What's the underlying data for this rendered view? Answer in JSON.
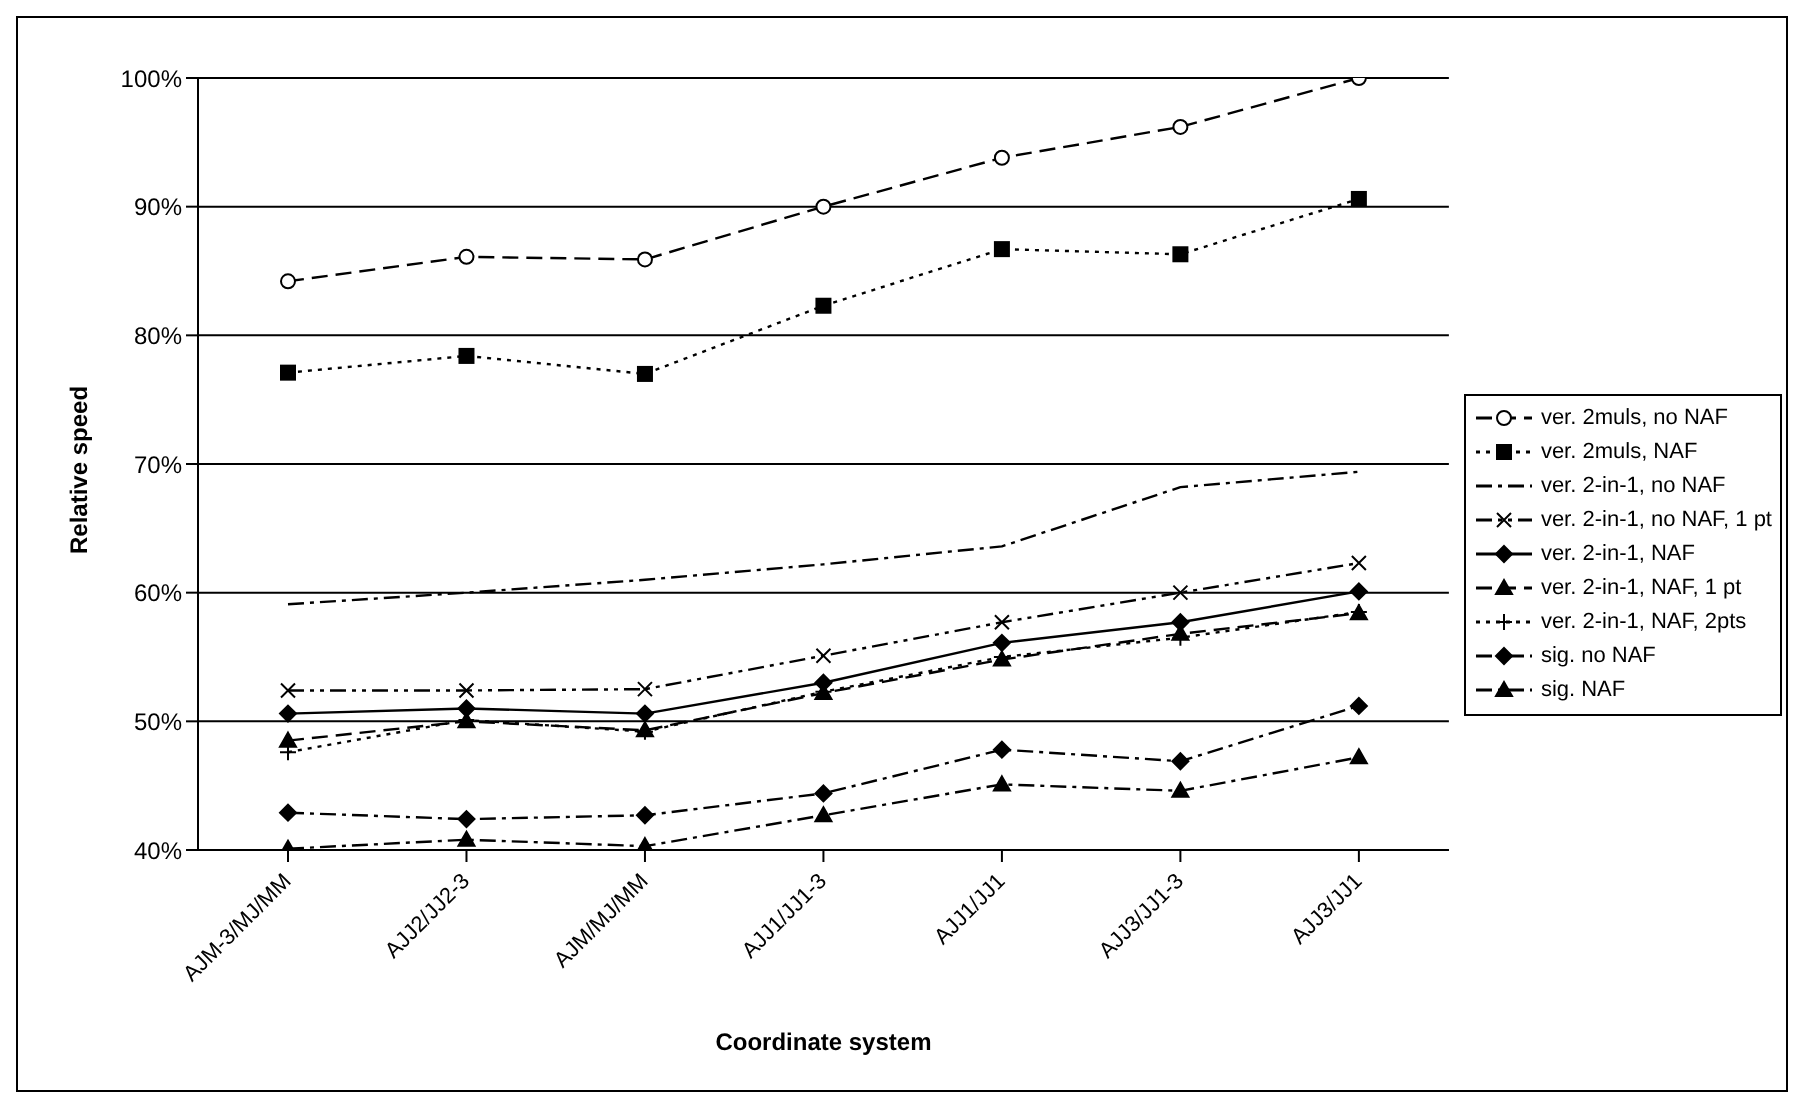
{
  "chart_data": {
    "type": "line",
    "xlabel": "Coordinate system",
    "ylabel": "Relative speed",
    "categories": [
      "AJM-3/MJ/MM",
      "AJJ2/JJ2-3",
      "AJM/MJ/MM",
      "AJJ1/JJ1-3",
      "AJJ1/JJ1",
      "AJJ3/JJ1-3",
      "AJJ3/JJ1"
    ],
    "ylim": [
      40,
      100
    ],
    "yticks": [
      {
        "value": 40,
        "label": "40%"
      },
      {
        "value": 50,
        "label": "50%"
      },
      {
        "value": 60,
        "label": "60%"
      },
      {
        "value": 70,
        "label": "70%"
      },
      {
        "value": 80,
        "label": "80%"
      },
      {
        "value": 90,
        "label": "90%"
      },
      {
        "value": 100,
        "label": "100%"
      }
    ],
    "grid": "y",
    "legend": "right",
    "series": [
      {
        "name": "ver. 2muls, no NAF",
        "color": "#000000",
        "marker": "circle",
        "line_style": "dashed",
        "values": [
          84.2,
          86.1,
          85.9,
          90.0,
          93.8,
          96.2,
          100.0
        ]
      },
      {
        "name": "ver. 2muls, NAF",
        "color": "#000000",
        "marker": "square",
        "line_style": "dotted",
        "values": [
          77.1,
          78.4,
          77.0,
          82.3,
          86.7,
          86.3,
          90.6
        ]
      },
      {
        "name": "ver. 2-in-1, no NAF",
        "color": "#000000",
        "marker": "none",
        "line_style": "dashdot",
        "values": [
          59.1,
          60.0,
          61.0,
          62.2,
          63.6,
          68.2,
          69.4
        ]
      },
      {
        "name": "ver. 2-in-1, no NAF, 1 pt",
        "color": "#000000",
        "marker": "cross",
        "line_style": "dashdotdot",
        "values": [
          52.4,
          52.4,
          52.5,
          55.1,
          57.7,
          60.0,
          62.3
        ]
      },
      {
        "name": "ver. 2-in-1, NAF",
        "color": "#000000",
        "marker": "diamond",
        "line_style": "solid",
        "values": [
          50.6,
          51.0,
          50.6,
          53.0,
          56.1,
          57.7,
          60.1
        ]
      },
      {
        "name": "ver. 2-in-1, NAF, 1 pt",
        "color": "#000000",
        "marker": "triangle",
        "line_style": "dashed",
        "values": [
          48.5,
          50.0,
          49.3,
          52.2,
          54.8,
          56.8,
          58.4
        ]
      },
      {
        "name": "ver. 2-in-1, NAF, 2pts",
        "color": "#000000",
        "marker": "plus",
        "line_style": "dotted",
        "values": [
          47.6,
          50.1,
          49.2,
          52.3,
          55.0,
          56.5,
          58.5
        ]
      },
      {
        "name": "sig. no NAF",
        "color": "#000000",
        "marker": "diamond",
        "line_style": "dashdot",
        "values": [
          42.9,
          42.4,
          42.7,
          44.4,
          47.8,
          46.9,
          51.2
        ]
      },
      {
        "name": "sig. NAF",
        "color": "#000000",
        "marker": "triangle",
        "line_style": "dashdot",
        "values": [
          40.1,
          40.8,
          40.3,
          42.7,
          45.1,
          44.6,
          47.2
        ]
      }
    ]
  }
}
